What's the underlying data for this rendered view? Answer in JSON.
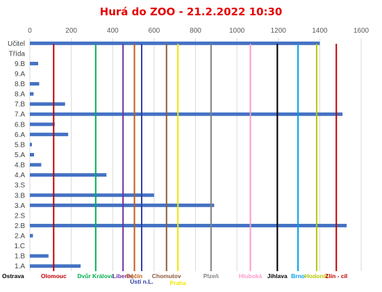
{
  "chart_data": {
    "type": "bar",
    "orientation": "horizontal",
    "title": "Hurá do ZOO - 21.2.2022 10:30",
    "xlim": [
      0,
      1600
    ],
    "xticks": [
      0,
      200,
      400,
      600,
      800,
      1000,
      1200,
      1400,
      1600
    ],
    "grid": true,
    "categories": [
      "Učitel",
      "Třída",
      "9.B",
      "9.A",
      "8.B",
      "8.A",
      "7.B",
      "7.A",
      "6.B",
      "6.A",
      "5.B",
      "5.A",
      "4.B",
      "4.A",
      "3.S",
      "3.B",
      "3.A",
      "2.S",
      "2.B",
      "2.A",
      "1.C",
      "1.B",
      "1.A"
    ],
    "values": [
      1400,
      0,
      40,
      0,
      45,
      18,
      170,
      1510,
      120,
      185,
      10,
      20,
      55,
      370,
      0,
      600,
      890,
      0,
      1530,
      15,
      0,
      90,
      245
    ],
    "bar_color": "#4472c4",
    "milestones": [
      {
        "name": "Ostrava",
        "value": 0,
        "color": "#000000"
      },
      {
        "name": "Olomouc",
        "value": 115,
        "color": "#c00000"
      },
      {
        "name": "Dvůr Králové",
        "value": 318,
        "color": "#00b050"
      },
      {
        "name": "Liberec",
        "value": 450,
        "color": "#7030a0"
      },
      {
        "name": "Děčín",
        "value": 505,
        "color": "#c55a11"
      },
      {
        "name": "Ústí n.L.",
        "value": 540,
        "color": "#2f3ea8"
      },
      {
        "name": "Chomutov",
        "value": 660,
        "color": "#8c5a3c"
      },
      {
        "name": "Praha",
        "value": 715,
        "color": "#f2e600"
      },
      {
        "name": "Plzeň",
        "value": 875,
        "color": "#808080"
      },
      {
        "name": "Hluboká",
        "value": 1065,
        "color": "#ff99cc"
      },
      {
        "name": "Jihlava",
        "value": 1195,
        "color": "#000000"
      },
      {
        "name": "Brno",
        "value": 1295,
        "color": "#00a2e8"
      },
      {
        "name": "Hodonín",
        "value": 1385,
        "color": "#b4c800"
      },
      {
        "name": "Zlín - cíl",
        "value": 1480,
        "color": "#c00000"
      }
    ]
  }
}
